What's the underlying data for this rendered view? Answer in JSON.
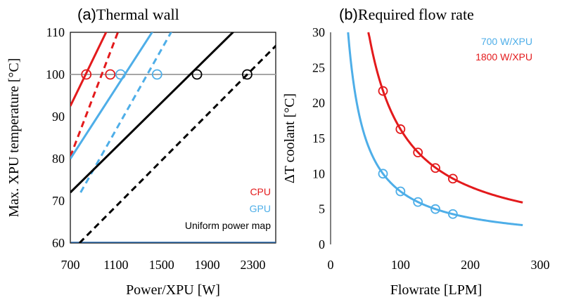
{
  "chart_data": [
    {
      "type": "line",
      "panel_label": "(a)",
      "title": "Thermal wall",
      "xlabel": "Power/XPU [W]",
      "ylabel": "Max. XPU temperature [°C]",
      "xlim": [
        700,
        2500
      ],
      "ylim": [
        60,
        110
      ],
      "xticks": [
        700,
        1100,
        1500,
        1900,
        2300
      ],
      "yticks": [
        60,
        70,
        80,
        90,
        100,
        110
      ],
      "reference_line_y": 100,
      "legend": [
        {
          "label": "CPU",
          "color": "#e31a1c"
        },
        {
          "label": "GPU",
          "color": "#4eaee8"
        },
        {
          "label": "Uniform power map",
          "color": "#000000"
        }
      ],
      "series": [
        {
          "group": "CPU",
          "style": "solid",
          "color": "#e31a1c",
          "x": [
            700,
            1160
          ],
          "y": [
            92.5,
            118.2
          ]
        },
        {
          "group": "CPU",
          "style": "dashed",
          "color": "#e31a1c",
          "x": [
            700,
            1180
          ],
          "y": [
            80.5,
            114.5
          ]
        },
        {
          "group": "GPU",
          "style": "solid",
          "color": "#4eaee8",
          "x": [
            700,
            1550
          ],
          "y": [
            80,
            115.6
          ]
        },
        {
          "group": "GPU",
          "style": "dashed",
          "color": "#4eaee8",
          "x": [
            790,
            1700
          ],
          "y": [
            72,
            115.6
          ]
        },
        {
          "group": "Uniform power map",
          "style": "solid",
          "color": "#000000",
          "x": [
            700,
            2200
          ],
          "y": [
            72,
            112
          ]
        },
        {
          "group": "Uniform power map",
          "style": "dashed",
          "color": "#000000",
          "x": [
            780,
            2600
          ],
          "y": [
            60,
            109.5
          ]
        }
      ],
      "markers": [
        {
          "x": 840,
          "y": 100,
          "color": "#e31a1c"
        },
        {
          "x": 1050,
          "y": 100,
          "color": "#e31a1c"
        },
        {
          "x": 1140,
          "y": 100,
          "color": "#4eaee8"
        },
        {
          "x": 1460,
          "y": 100,
          "color": "#4eaee8"
        },
        {
          "x": 1810,
          "y": 100,
          "color": "#000000"
        },
        {
          "x": 2250,
          "y": 100,
          "color": "#000000"
        }
      ]
    },
    {
      "type": "line",
      "panel_label": "(b)",
      "title": "Required flow rate",
      "xlabel": "Flowrate [LPM]",
      "ylabel": "ΔT coolant [°C]",
      "xlim": [
        0,
        300
      ],
      "ylim": [
        0,
        30
      ],
      "xticks": [
        0,
        100,
        200,
        300
      ],
      "yticks": [
        0,
        5,
        10,
        15,
        20,
        25,
        30
      ],
      "legend": [
        {
          "label": "700 W/XPU",
          "color": "#4eaee8"
        },
        {
          "label": "1800 W/XPU",
          "color": "#e31a1c"
        }
      ],
      "series": [
        {
          "name": "700 W/XPU",
          "color": "#4eaee8",
          "k": 750,
          "x_range": [
            25,
            275
          ],
          "x": [
            75,
            100,
            125,
            150,
            175
          ],
          "y": [
            10,
            7.5,
            6,
            5,
            4.3
          ]
        },
        {
          "name": "1800 W/XPU",
          "color": "#e31a1c",
          "k": 1630,
          "x_range": [
            54,
            275
          ],
          "x": [
            75,
            100,
            125,
            150,
            175
          ],
          "y": [
            21.7,
            16.3,
            13,
            10.8,
            9.3
          ]
        }
      ]
    }
  ]
}
